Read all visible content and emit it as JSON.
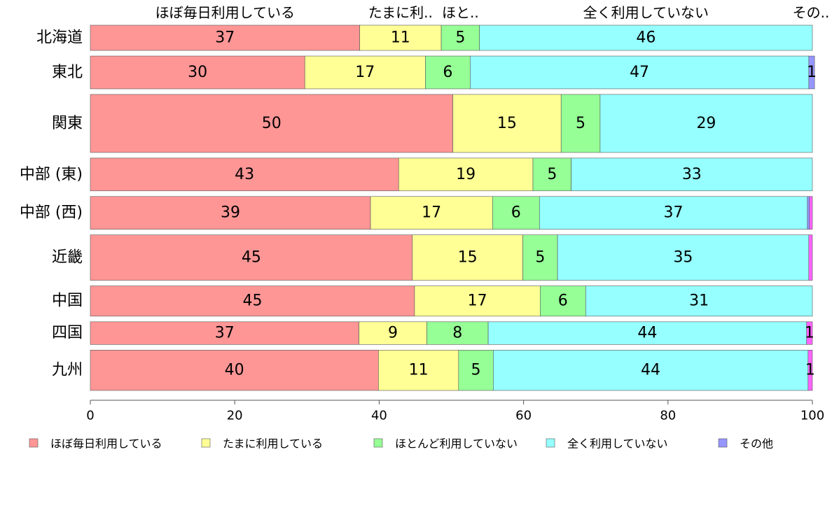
{
  "chart_data": {
    "type": "bar",
    "orientation": "horizontal",
    "stacked": true,
    "title": "",
    "xlabel": "",
    "ylabel": "",
    "xlim": [
      0,
      100
    ],
    "x_ticks": [
      0,
      20,
      40,
      60,
      80,
      100
    ],
    "legend_position": "bottom",
    "grid": false,
    "categories": [
      "北海道",
      "東北",
      "関東",
      "中部 (東)",
      "中部 (西)",
      "近畿",
      "中国",
      "四国",
      "九州"
    ],
    "top_labels": [
      "ほぼ毎日利用している",
      "たまに利..",
      "ほと..",
      "全く利用していない",
      "その.."
    ],
    "series": [
      {
        "name": "ほぼ毎日利用している",
        "color": "#ff9696",
        "values": [
          37.3,
          29.7,
          50.2,
          42.7,
          38.8,
          44.6,
          44.9,
          37.2,
          39.9
        ],
        "labels": [
          "37",
          "30",
          "50",
          "43",
          "39",
          "45",
          "45",
          "37",
          "40"
        ]
      },
      {
        "name": "たまに利用している",
        "color": "#ffff96",
        "values": [
          11.3,
          16.7,
          15.0,
          18.6,
          16.9,
          15.3,
          17.4,
          9.4,
          11.1
        ],
        "labels": [
          "11",
          "17",
          "15",
          "19",
          "17",
          "15",
          "17",
          "9",
          "11"
        ]
      },
      {
        "name": "ほとんど利用していない",
        "color": "#96ff96",
        "values": [
          5.3,
          6.2,
          5.4,
          5.3,
          6.5,
          4.8,
          6.3,
          8.5,
          4.8
        ],
        "labels": [
          "5",
          "6",
          "5",
          "5",
          "6",
          "5",
          "6",
          "8",
          "5"
        ]
      },
      {
        "name": "全く利用していない",
        "color": "#96ffff",
        "values": [
          46.1,
          46.9,
          29.4,
          33.4,
          37.1,
          34.8,
          31.4,
          44.1,
          43.6
        ],
        "labels": [
          "46",
          "47",
          "29",
          "33",
          "37",
          "35",
          "31",
          "44",
          "44"
        ]
      },
      {
        "name": "その他",
        "color": "#9696ff",
        "values": [
          0.0,
          0.8,
          0.0,
          0.0,
          0.3,
          0.0,
          0.0,
          0.0,
          0.0
        ],
        "labels": [
          "",
          "1",
          "",
          "",
          "",
          "",
          "",
          "",
          ""
        ]
      },
      {
        "name": "",
        "color": "#ff64ff",
        "values": [
          0.0,
          0.0,
          0.0,
          0.0,
          0.4,
          0.5,
          0.0,
          0.8,
          0.6
        ],
        "labels": [
          "",
          "",
          "",
          "",
          "",
          "",
          "",
          "1",
          "1"
        ]
      }
    ],
    "row_weights": [
      1.0,
      1.3,
      2.3,
      1.3,
      1.3,
      1.8,
      1.2,
      0.9,
      1.6
    ]
  }
}
